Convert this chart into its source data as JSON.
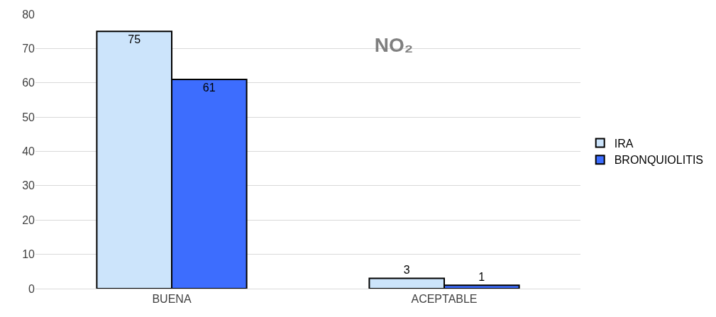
{
  "chart_data": {
    "type": "bar",
    "title": "NO₂",
    "categories": [
      "BUENA",
      "ACEPTABLE"
    ],
    "series": [
      {
        "name": "IRA",
        "color": "#cce4fb",
        "values": [
          75,
          3
        ]
      },
      {
        "name": "BRONQUIOLITIS",
        "color": "#3d6dfe",
        "values": [
          61,
          1
        ]
      }
    ],
    "ylim": [
      0,
      80
    ],
    "yticks": [
      0,
      10,
      20,
      30,
      40,
      50,
      60,
      70,
      80
    ],
    "grid": "y",
    "legend": "right",
    "data_labels": true
  }
}
